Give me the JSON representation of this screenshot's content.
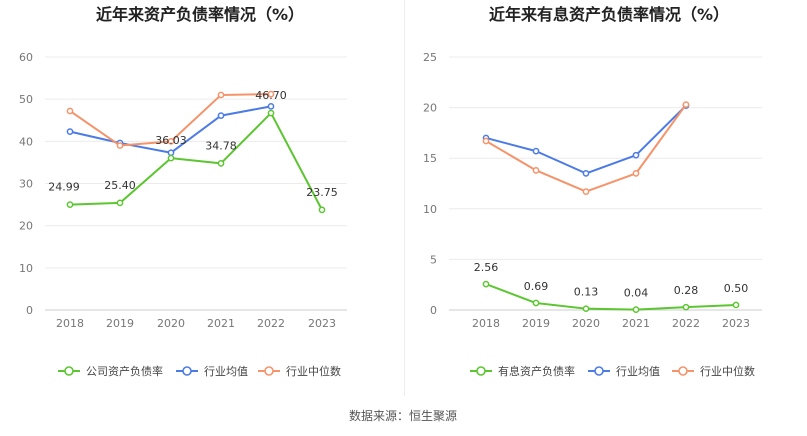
{
  "source": "数据来源：恒生聚源",
  "chart_data": [
    {
      "type": "line",
      "title": "近年来资产负债率情况（%）",
      "categories": [
        "2018",
        "2019",
        "2020",
        "2021",
        "2022",
        "2023"
      ],
      "ylim": [
        0,
        60
      ],
      "yticks": [
        0,
        10,
        20,
        30,
        40,
        50,
        60
      ],
      "grid": true,
      "legend_position": "bottom",
      "series": [
        {
          "name": "公司资产负债率",
          "color": "#5cc631",
          "values": [
            24.99,
            25.4,
            36.03,
            34.78,
            46.7,
            23.75
          ],
          "labels": [
            "24.99",
            "25.40",
            "36.03",
            "34.78",
            "46.70",
            "23.75"
          ]
        },
        {
          "name": "行业均值",
          "color": "#4b7be5",
          "values": [
            42.3,
            39.6,
            37.3,
            46.1,
            48.3,
            null
          ],
          "labels": []
        },
        {
          "name": "行业中位数",
          "color": "#f5936a",
          "values": [
            47.2,
            39.0,
            40.0,
            51.0,
            51.2,
            null
          ],
          "labels": []
        }
      ]
    },
    {
      "type": "line",
      "title": "近年来有息资产负债率情况（%）",
      "categories": [
        "2018",
        "2019",
        "2020",
        "2021",
        "2022",
        "2023"
      ],
      "ylim": [
        0,
        25
      ],
      "yticks": [
        0,
        5,
        10,
        15,
        20,
        25
      ],
      "grid": true,
      "legend_position": "bottom",
      "series": [
        {
          "name": "有息资产负债率",
          "color": "#5cc631",
          "values": [
            2.56,
            0.69,
            0.13,
            0.04,
            0.28,
            0.5
          ],
          "labels": [
            "2.56",
            "0.69",
            "0.13",
            "0.04",
            "0.28",
            "0.50"
          ]
        },
        {
          "name": "行业均值",
          "color": "#4b7be5",
          "values": [
            17.0,
            15.7,
            13.5,
            15.3,
            20.2,
            null
          ],
          "labels": []
        },
        {
          "name": "行业中位数",
          "color": "#f5936a",
          "values": [
            16.7,
            13.8,
            11.7,
            13.5,
            20.3,
            null
          ],
          "labels": []
        }
      ]
    }
  ]
}
